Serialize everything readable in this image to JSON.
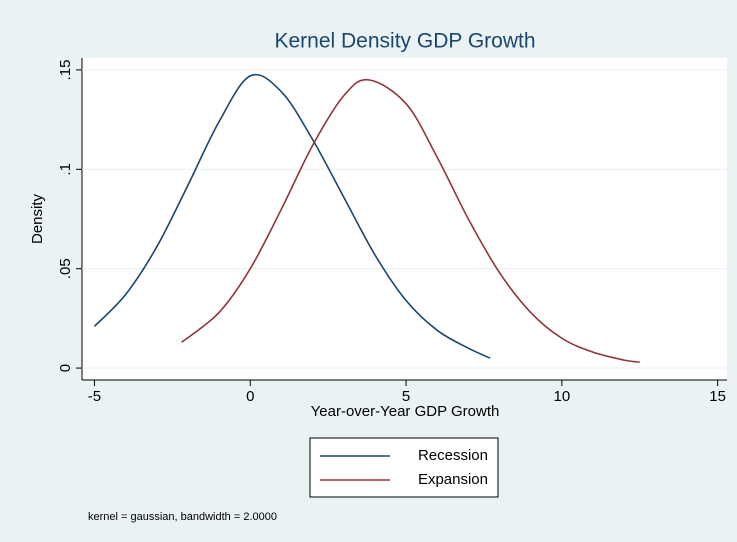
{
  "chart_data": {
    "type": "line",
    "title": "Kernel Density GDP Growth",
    "x_label": "Year-over-Year GDP Growth",
    "y_label": "Density",
    "note": "kernel = gaussian, bandwidth = 2.0000",
    "series": [
      {
        "name": "Recession",
        "color": "#1a476f",
        "x": [
          -5,
          -4,
          -3,
          -2,
          -1,
          0,
          1,
          2,
          3,
          4,
          5,
          6,
          7,
          7.7
        ],
        "values": [
          0.021,
          0.037,
          0.061,
          0.092,
          0.124,
          0.147,
          0.139,
          0.115,
          0.086,
          0.057,
          0.034,
          0.019,
          0.01,
          0.005
        ]
      },
      {
        "name": "Expansion",
        "color": "#90353b",
        "x": [
          -2.2,
          -1,
          0,
          1,
          2,
          3,
          3.8,
          5,
          6,
          7,
          8,
          9,
          10,
          11,
          12,
          12.5
        ],
        "values": [
          0.013,
          0.028,
          0.05,
          0.08,
          0.112,
          0.137,
          0.145,
          0.133,
          0.106,
          0.075,
          0.048,
          0.028,
          0.015,
          0.008,
          0.004,
          0.003
        ]
      }
    ],
    "xlim": [
      -5.4,
      15.3
    ],
    "xticks": [
      -5,
      0,
      5,
      10,
      15
    ],
    "ylim": [
      -0.006,
      0.156
    ],
    "yticks": [
      0,
      {
        "value": 0.05,
        "label": ".05"
      },
      {
        "value": 0.1,
        "label": ".1"
      },
      {
        "value": 0.15,
        "label": ".15"
      }
    ],
    "grid": true
  }
}
